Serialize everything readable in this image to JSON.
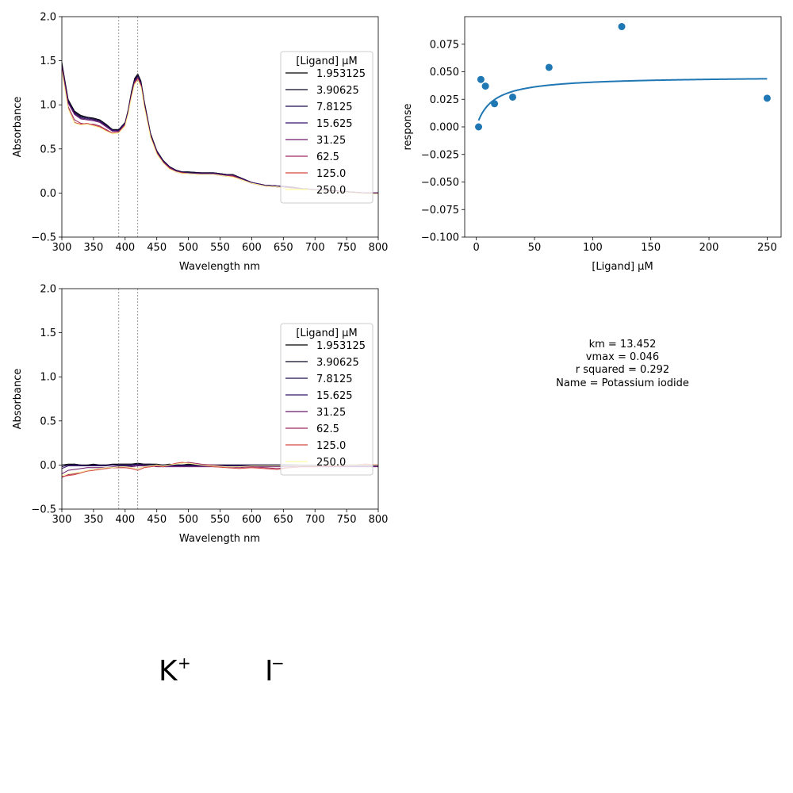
{
  "chart_data": [
    {
      "type": "line",
      "xlabel": "Wavelength nm",
      "ylabel": "Absorbance",
      "xlim": [
        300,
        800
      ],
      "ylim": [
        -0.5,
        2.0
      ],
      "xticks": [
        "300",
        "350",
        "400",
        "450",
        "500",
        "550",
        "600",
        "650",
        "700",
        "750",
        "800"
      ],
      "yticks": [
        "−0.5",
        "0.0",
        "0.5",
        "1.0",
        "1.5",
        "2.0"
      ],
      "vlines": [
        390,
        420
      ],
      "legend": {
        "title": "[Ligand] µM",
        "entries": [
          "1.953125",
          "3.90625",
          "7.8125",
          "15.625",
          "31.25",
          "62.5",
          "125.0",
          "250.0"
        ],
        "placement": "right"
      },
      "series_colors": [
        "#000004",
        "#0a0722",
        "#1f0c48",
        "#36106b",
        "#6a176e",
        "#9f2a63",
        "#d44842",
        "#fcffa4"
      ],
      "x": [
        300,
        310,
        320,
        330,
        340,
        350,
        360,
        370,
        380,
        390,
        400,
        405,
        410,
        415,
        420,
        425,
        430,
        440,
        450,
        460,
        470,
        480,
        490,
        500,
        520,
        540,
        560,
        570,
        580,
        600,
        620,
        640,
        660,
        680,
        700,
        720,
        740,
        760,
        780,
        800
      ],
      "series": [
        {
          "values": [
            1.48,
            1.06,
            0.93,
            0.88,
            0.86,
            0.85,
            0.83,
            0.78,
            0.72,
            0.72,
            0.8,
            0.95,
            1.15,
            1.3,
            1.35,
            1.27,
            1.05,
            0.68,
            0.48,
            0.37,
            0.3,
            0.26,
            0.24,
            0.24,
            0.23,
            0.23,
            0.21,
            0.21,
            0.18,
            0.12,
            0.09,
            0.08,
            0.07,
            0.05,
            0.04,
            0.03,
            0.02,
            0.01,
            0.0,
            0.0
          ]
        },
        {
          "values": [
            1.46,
            1.05,
            0.92,
            0.87,
            0.86,
            0.84,
            0.82,
            0.77,
            0.72,
            0.72,
            0.8,
            0.94,
            1.14,
            1.29,
            1.34,
            1.26,
            1.04,
            0.67,
            0.48,
            0.37,
            0.3,
            0.26,
            0.24,
            0.24,
            0.23,
            0.23,
            0.21,
            0.21,
            0.18,
            0.12,
            0.09,
            0.08,
            0.07,
            0.05,
            0.04,
            0.03,
            0.02,
            0.01,
            0.0,
            0.0
          ]
        },
        {
          "values": [
            1.45,
            1.04,
            0.91,
            0.86,
            0.85,
            0.84,
            0.82,
            0.77,
            0.71,
            0.71,
            0.79,
            0.93,
            1.13,
            1.28,
            1.33,
            1.25,
            1.03,
            0.67,
            0.47,
            0.36,
            0.3,
            0.26,
            0.24,
            0.23,
            0.23,
            0.23,
            0.21,
            0.2,
            0.18,
            0.12,
            0.09,
            0.08,
            0.07,
            0.05,
            0.04,
            0.03,
            0.02,
            0.01,
            0.0,
            0.0
          ]
        },
        {
          "values": [
            1.44,
            1.03,
            0.9,
            0.85,
            0.84,
            0.83,
            0.81,
            0.76,
            0.71,
            0.71,
            0.79,
            0.93,
            1.12,
            1.27,
            1.32,
            1.24,
            1.02,
            0.66,
            0.47,
            0.36,
            0.29,
            0.25,
            0.23,
            0.23,
            0.22,
            0.22,
            0.2,
            0.2,
            0.17,
            0.12,
            0.09,
            0.08,
            0.07,
            0.05,
            0.04,
            0.03,
            0.02,
            0.01,
            0.0,
            0.0
          ]
        },
        {
          "values": [
            1.43,
            1.02,
            0.89,
            0.84,
            0.83,
            0.82,
            0.8,
            0.75,
            0.7,
            0.7,
            0.78,
            0.92,
            1.11,
            1.26,
            1.31,
            1.23,
            1.01,
            0.65,
            0.46,
            0.35,
            0.29,
            0.25,
            0.23,
            0.22,
            0.22,
            0.22,
            0.2,
            0.2,
            0.17,
            0.11,
            0.08,
            0.07,
            0.06,
            0.05,
            0.04,
            0.03,
            0.02,
            0.01,
            0.0,
            0.0
          ]
        },
        {
          "values": [
            1.4,
            0.98,
            0.83,
            0.79,
            0.78,
            0.78,
            0.76,
            0.72,
            0.68,
            0.69,
            0.77,
            0.91,
            1.1,
            1.25,
            1.3,
            1.22,
            1.0,
            0.64,
            0.45,
            0.35,
            0.28,
            0.24,
            0.22,
            0.22,
            0.21,
            0.21,
            0.19,
            0.19,
            0.16,
            0.11,
            0.08,
            0.07,
            0.06,
            0.04,
            0.03,
            0.02,
            0.01,
            0.0,
            -0.01,
            -0.01
          ]
        },
        {
          "values": [
            1.39,
            0.96,
            0.8,
            0.78,
            0.79,
            0.77,
            0.75,
            0.71,
            0.68,
            0.69,
            0.77,
            0.9,
            1.09,
            1.24,
            1.29,
            1.21,
            0.99,
            0.64,
            0.45,
            0.34,
            0.28,
            0.24,
            0.23,
            0.22,
            0.21,
            0.21,
            0.19,
            0.19,
            0.16,
            0.11,
            0.08,
            0.07,
            0.05,
            0.04,
            0.03,
            0.02,
            0.01,
            0.0,
            -0.01,
            -0.01
          ]
        },
        {
          "values": [
            1.38,
            0.95,
            0.79,
            0.77,
            0.78,
            0.76,
            0.74,
            0.7,
            0.67,
            0.68,
            0.76,
            0.9,
            1.08,
            1.23,
            1.28,
            1.2,
            0.98,
            0.63,
            0.44,
            0.34,
            0.27,
            0.24,
            0.22,
            0.22,
            0.21,
            0.21,
            0.19,
            0.18,
            0.16,
            0.11,
            0.08,
            0.07,
            0.05,
            0.04,
            0.03,
            0.02,
            0.01,
            0.0,
            -0.01,
            -0.01
          ]
        }
      ]
    },
    {
      "type": "scatter",
      "xlabel": "[Ligand] µM",
      "ylabel": "response",
      "xlim": [
        -10,
        262
      ],
      "ylim": [
        -0.1,
        0.1
      ],
      "xticks": [
        "0",
        "50",
        "100",
        "150",
        "200",
        "250"
      ],
      "yticks": [
        "−0.100",
        "−0.075",
        "−0.050",
        "−0.025",
        "0.000",
        "0.025",
        "0.050",
        "0.075"
      ],
      "points": {
        "x": [
          1.953125,
          3.90625,
          7.8125,
          15.625,
          31.25,
          62.5,
          125.0,
          250.0
        ],
        "y": [
          0.0,
          0.043,
          0.037,
          0.021,
          0.027,
          0.054,
          0.091,
          0.026
        ],
        "color": "#1f77b4"
      },
      "fit": {
        "model": "michaelis-menten",
        "km": 13.452,
        "vmax": 0.046,
        "x_range": [
          1.953125,
          250
        ],
        "color": "#1f77b4"
      }
    },
    {
      "type": "line",
      "xlabel": "Wavelength nm",
      "ylabel": "Absorbance",
      "xlim": [
        300,
        800
      ],
      "ylim": [
        -0.5,
        2.0
      ],
      "xticks": [
        "300",
        "350",
        "400",
        "450",
        "500",
        "550",
        "600",
        "650",
        "700",
        "750",
        "800"
      ],
      "yticks": [
        "−0.5",
        "0.0",
        "0.5",
        "1.0",
        "1.5",
        "2.0"
      ],
      "vlines": [
        390,
        420
      ],
      "legend": {
        "title": "[Ligand] µM",
        "entries": [
          "1.953125",
          "3.90625",
          "7.8125",
          "15.625",
          "31.25",
          "62.5",
          "125.0",
          "250.0"
        ],
        "placement": "right"
      },
      "series_colors": [
        "#000004",
        "#0a0722",
        "#1f0c48",
        "#36106b",
        "#6a176e",
        "#9f2a63",
        "#d44842",
        "#fcffa4"
      ],
      "x": [
        300,
        310,
        320,
        330,
        340,
        350,
        360,
        370,
        380,
        390,
        400,
        410,
        420,
        430,
        440,
        450,
        460,
        470,
        480,
        490,
        500,
        520,
        540,
        560,
        580,
        600,
        620,
        640,
        660,
        680,
        700,
        720,
        740,
        760,
        780,
        800
      ],
      "series": [
        {
          "values": [
            0.0,
            0.01,
            0.01,
            0.0,
            0.0,
            0.01,
            0.0,
            0.0,
            0.01,
            0.01,
            0.01,
            0.01,
            0.02,
            0.01,
            0.01,
            0.01,
            0.0,
            0.01,
            0.0,
            0.0,
            0.01,
            0.0,
            0.0,
            0.0,
            0.0,
            0.0,
            0.0,
            0.0,
            0.0,
            0.0,
            0.0,
            0.0,
            0.0,
            0.0,
            0.0,
            0.0
          ]
        },
        {
          "values": [
            0.0,
            0.0,
            0.01,
            0.0,
            0.0,
            0.0,
            0.0,
            0.0,
            0.0,
            0.01,
            0.01,
            0.01,
            0.01,
            0.01,
            0.01,
            0.0,
            0.0,
            0.0,
            0.0,
            0.0,
            0.0,
            0.0,
            0.0,
            0.0,
            0.0,
            0.0,
            0.0,
            0.0,
            0.0,
            0.0,
            0.0,
            0.0,
            0.0,
            0.0,
            0.0,
            0.0
          ]
        },
        {
          "values": [
            -0.02,
            0.0,
            0.0,
            0.0,
            -0.01,
            0.0,
            0.0,
            0.0,
            0.0,
            0.0,
            0.0,
            0.0,
            0.01,
            0.0,
            0.0,
            0.0,
            0.0,
            0.0,
            0.0,
            0.0,
            0.0,
            0.0,
            0.0,
            0.0,
            0.0,
            0.0,
            0.0,
            0.0,
            0.0,
            0.0,
            0.0,
            0.0,
            0.0,
            0.0,
            0.0,
            0.0
          ]
        },
        {
          "values": [
            -0.04,
            -0.01,
            -0.01,
            -0.01,
            -0.01,
            -0.01,
            -0.01,
            -0.01,
            0.0,
            -0.01,
            -0.01,
            -0.01,
            0.0,
            -0.01,
            -0.01,
            -0.01,
            -0.01,
            -0.01,
            -0.01,
            -0.01,
            -0.01,
            -0.01,
            -0.01,
            -0.01,
            -0.01,
            -0.01,
            -0.01,
            -0.01,
            -0.01,
            -0.01,
            -0.01,
            -0.01,
            -0.01,
            -0.01,
            -0.01,
            -0.01
          ]
        },
        {
          "values": [
            -0.1,
            -0.06,
            -0.05,
            -0.04,
            -0.03,
            -0.03,
            -0.03,
            -0.03,
            -0.02,
            -0.02,
            -0.02,
            -0.02,
            -0.01,
            -0.01,
            -0.01,
            -0.02,
            -0.02,
            -0.02,
            -0.02,
            -0.02,
            -0.02,
            -0.02,
            -0.02,
            -0.02,
            -0.02,
            -0.02,
            -0.02,
            -0.02,
            -0.02,
            -0.02,
            -0.02,
            -0.02,
            -0.02,
            -0.02,
            -0.02,
            -0.02
          ]
        },
        {
          "values": [
            -0.14,
            -0.11,
            -0.1,
            -0.08,
            -0.06,
            -0.05,
            -0.04,
            -0.04,
            -0.03,
            -0.03,
            -0.03,
            -0.03,
            -0.04,
            -0.02,
            -0.02,
            -0.01,
            -0.02,
            0.0,
            0.01,
            0.02,
            0.03,
            0.01,
            0.0,
            -0.02,
            -0.03,
            -0.02,
            -0.03,
            -0.04,
            -0.03,
            -0.02,
            -0.02,
            -0.01,
            -0.01,
            0.0,
            0.01,
            0.0
          ]
        },
        {
          "values": [
            -0.13,
            -0.12,
            -0.11,
            -0.09,
            -0.07,
            -0.06,
            -0.05,
            -0.04,
            -0.03,
            -0.03,
            -0.03,
            -0.04,
            -0.06,
            -0.03,
            -0.02,
            -0.01,
            -0.02,
            0.0,
            0.02,
            0.03,
            0.02,
            0.0,
            -0.02,
            -0.03,
            -0.04,
            -0.03,
            -0.04,
            -0.05,
            -0.03,
            -0.02,
            -0.02,
            -0.01,
            -0.01,
            0.0,
            0.01,
            0.0
          ]
        },
        {
          "values": [
            -0.12,
            -0.1,
            -0.09,
            -0.08,
            -0.06,
            -0.05,
            -0.04,
            -0.03,
            -0.03,
            -0.02,
            -0.02,
            -0.03,
            -0.04,
            -0.02,
            -0.01,
            0.0,
            -0.01,
            0.0,
            0.01,
            0.02,
            0.02,
            0.0,
            -0.01,
            -0.02,
            -0.02,
            -0.01,
            -0.01,
            -0.01,
            -0.01,
            0.0,
            0.0,
            0.0,
            0.0,
            0.0,
            0.0,
            0.0
          ]
        }
      ]
    }
  ],
  "stats": {
    "km": "km = 13.452",
    "vmax": "vmax = 0.046",
    "r_squared": "r squared = 0.292",
    "name": "Name = Potassium iodide"
  },
  "molecule": {
    "cation": "K",
    "cation_charge": "+",
    "anion": "I",
    "anion_charge": "−",
    "cation_color": "#000000",
    "anion_color": "#a020f0"
  }
}
